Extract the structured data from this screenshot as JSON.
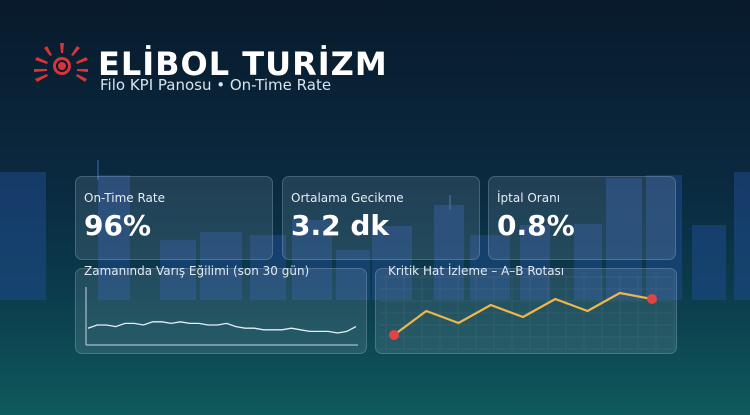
{
  "brand": {
    "name": "ELİBOL TURİZM",
    "subtitle": "Filo KPI Panosu • On-Time Rate"
  },
  "kpis": [
    {
      "label": "On-Time Rate",
      "value": "96%"
    },
    {
      "label": "Ortalama Gecikme",
      "value": "3.2 dk"
    },
    {
      "label": "İptal Oranı",
      "value": "0.8%"
    }
  ],
  "charts": {
    "trend_title": "Zamanında Varış Eğilimi (son 30 gün)",
    "route_title": "Kritik Hat İzleme – A–B Rotası"
  },
  "colors": {
    "accent_line": "#f0b64a",
    "marker": "#e04545",
    "brand_red": "#d8343a"
  },
  "chart_data": [
    {
      "type": "line",
      "y": [
        0.93,
        0.95,
        0.95,
        0.94,
        0.96,
        0.96,
        0.95,
        0.97,
        0.97,
        0.96,
        0.97,
        0.96,
        0.96,
        0.95,
        0.95,
        0.96,
        0.94,
        0.93,
        0.93,
        0.92,
        0.92,
        0.92,
        0.93,
        0.92,
        0.91,
        0.91,
        0.91,
        0.9,
        0.91,
        0.94
      ],
      "xlabel": "",
      "ylabel": "",
      "grid": false
    },
    {
      "type": "line",
      "y": [
        1,
        5,
        3,
        6,
        4,
        7,
        5,
        8,
        7
      ],
      "markers": "first-and-last",
      "grid": true
    }
  ]
}
